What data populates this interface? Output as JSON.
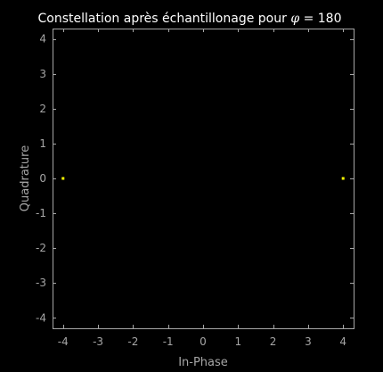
{
  "chart_data": {
    "type": "scatter",
    "title_prefix": "Constellation après échantillonage pour ",
    "title_symbol": "φ",
    "title_suffix": " = 180",
    "xlabel": "In-Phase",
    "ylabel": "Quadrature",
    "xlim": [
      -4.3,
      4.3
    ],
    "ylim": [
      -4.3,
      4.3
    ],
    "xticks": [
      -4,
      -3,
      -2,
      -1,
      0,
      1,
      2,
      3,
      4
    ],
    "yticks": [
      -4,
      -3,
      -2,
      -1,
      0,
      1,
      2,
      3,
      4
    ],
    "grid": false,
    "background_color": "#000000",
    "axes_color": "#a6a6a6",
    "series": [
      {
        "color": "#ffff00",
        "marker": "square",
        "points": [
          {
            "x": -4,
            "y": 0
          },
          {
            "x": 4,
            "y": 0
          }
        ]
      }
    ]
  }
}
